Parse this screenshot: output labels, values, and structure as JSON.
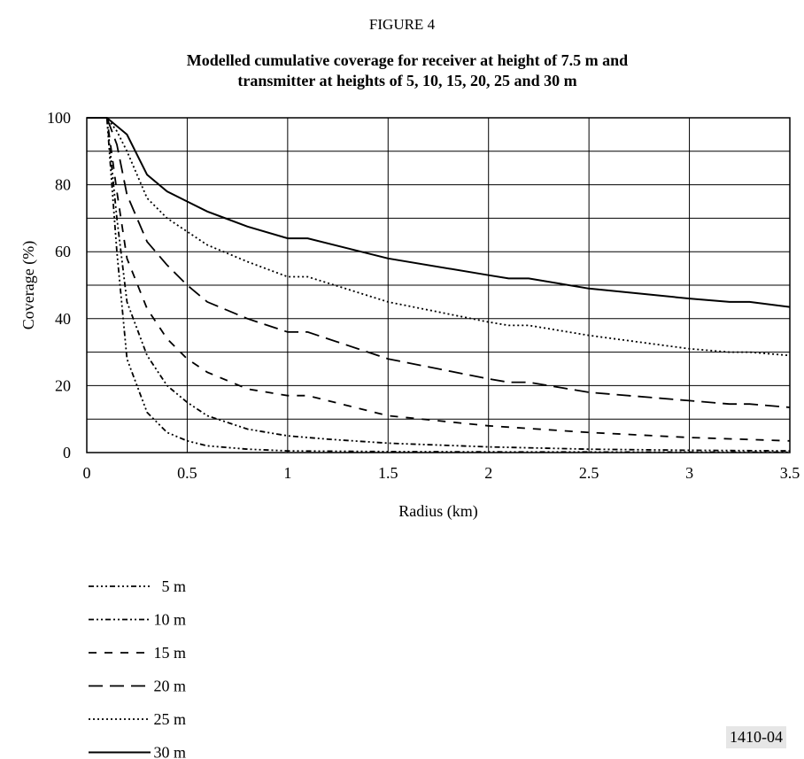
{
  "figure_label": "FIGURE 4",
  "chart_data": {
    "type": "line",
    "title": "Modelled cumulative coverage for receiver at height of 7.5 m and transmitter at heights of 5, 10, 15, 20, 25 and 30 m",
    "title_lines": [
      "Modelled cumulative coverage for receiver at height of 7.5 m and",
      "transmitter at heights of 5, 10, 15, 20, 25 and 30 m"
    ],
    "xlabel": "Radius (km)",
    "ylabel": "Coverage (%)",
    "xlim": [
      0,
      3.5
    ],
    "ylim": [
      0,
      100
    ],
    "x_ticks": [
      "0",
      "0.5",
      "1",
      "1.5",
      "2",
      "2.5",
      "3",
      "3.5"
    ],
    "y_ticks": [
      "0",
      "20",
      "40",
      "60",
      "80",
      "100"
    ],
    "grid": true,
    "legend_position": "below chart, left",
    "series": [
      {
        "name": "5 m",
        "dash": "dashdotdotdot",
        "points": [
          [
            0,
            100
          ],
          [
            0.1,
            100
          ],
          [
            0.15,
            60
          ],
          [
            0.2,
            28
          ],
          [
            0.25,
            20
          ],
          [
            0.3,
            12
          ],
          [
            0.4,
            6
          ],
          [
            0.5,
            3.5
          ],
          [
            0.6,
            2
          ],
          [
            0.8,
            1
          ],
          [
            1,
            0.5
          ],
          [
            1.5,
            0.3
          ],
          [
            2,
            0.2
          ],
          [
            3.5,
            0.1
          ]
        ]
      },
      {
        "name": "10 m",
        "dash": "dashdotdot",
        "points": [
          [
            0,
            100
          ],
          [
            0.1,
            100
          ],
          [
            0.15,
            70
          ],
          [
            0.2,
            45
          ],
          [
            0.3,
            29
          ],
          [
            0.4,
            20
          ],
          [
            0.5,
            15
          ],
          [
            0.6,
            11
          ],
          [
            0.8,
            7
          ],
          [
            1,
            5
          ],
          [
            1.2,
            4
          ],
          [
            1.5,
            2.8
          ],
          [
            2,
            1.7
          ],
          [
            2.5,
            1
          ],
          [
            3,
            0.7
          ],
          [
            3.5,
            0.5
          ]
        ]
      },
      {
        "name": "15 m",
        "dash": "dash",
        "points": [
          [
            0,
            100
          ],
          [
            0.1,
            100
          ],
          [
            0.15,
            78
          ],
          [
            0.2,
            58
          ],
          [
            0.3,
            43
          ],
          [
            0.4,
            34
          ],
          [
            0.5,
            28
          ],
          [
            0.6,
            24
          ],
          [
            0.8,
            19
          ],
          [
            1,
            17
          ],
          [
            1.1,
            17
          ],
          [
            1.5,
            11
          ],
          [
            2,
            8
          ],
          [
            2.5,
            6
          ],
          [
            3,
            4.5
          ],
          [
            3.5,
            3.5
          ]
        ]
      },
      {
        "name": "20 m",
        "dash": "longdash",
        "points": [
          [
            0,
            100
          ],
          [
            0.1,
            100
          ],
          [
            0.15,
            92
          ],
          [
            0.2,
            77
          ],
          [
            0.3,
            63
          ],
          [
            0.4,
            56
          ],
          [
            0.5,
            50
          ],
          [
            0.6,
            45
          ],
          [
            0.8,
            40
          ],
          [
            1,
            36
          ],
          [
            1.1,
            36
          ],
          [
            1.5,
            28
          ],
          [
            2,
            22
          ],
          [
            2.1,
            21
          ],
          [
            2.2,
            21
          ],
          [
            2.5,
            18
          ],
          [
            3,
            15.5
          ],
          [
            3.2,
            14.5
          ],
          [
            3.3,
            14.5
          ],
          [
            3.5,
            13.5
          ]
        ]
      },
      {
        "name": "25 m",
        "dash": "dot",
        "points": [
          [
            0,
            100
          ],
          [
            0.1,
            100
          ],
          [
            0.15,
            96
          ],
          [
            0.2,
            90
          ],
          [
            0.3,
            76
          ],
          [
            0.4,
            70
          ],
          [
            0.5,
            66
          ],
          [
            0.6,
            62
          ],
          [
            0.8,
            57
          ],
          [
            1,
            52.5
          ],
          [
            1.1,
            52.5
          ],
          [
            1.5,
            45
          ],
          [
            2,
            39
          ],
          [
            2.1,
            38
          ],
          [
            2.2,
            38
          ],
          [
            2.5,
            35
          ],
          [
            3,
            31
          ],
          [
            3.2,
            30
          ],
          [
            3.3,
            30
          ],
          [
            3.5,
            29
          ]
        ]
      },
      {
        "name": "30 m",
        "dash": "solid",
        "points": [
          [
            0,
            100
          ],
          [
            0.1,
            100
          ],
          [
            0.2,
            95
          ],
          [
            0.3,
            83
          ],
          [
            0.4,
            78
          ],
          [
            0.5,
            75
          ],
          [
            0.6,
            72
          ],
          [
            0.8,
            67.5
          ],
          [
            1,
            64
          ],
          [
            1.1,
            64
          ],
          [
            1.5,
            58
          ],
          [
            2,
            53
          ],
          [
            2.1,
            52
          ],
          [
            2.2,
            52
          ],
          [
            2.5,
            49
          ],
          [
            3,
            46
          ],
          [
            3.2,
            45
          ],
          [
            3.3,
            45
          ],
          [
            3.5,
            43.5
          ]
        ]
      }
    ]
  },
  "figure_code": "1410-04"
}
